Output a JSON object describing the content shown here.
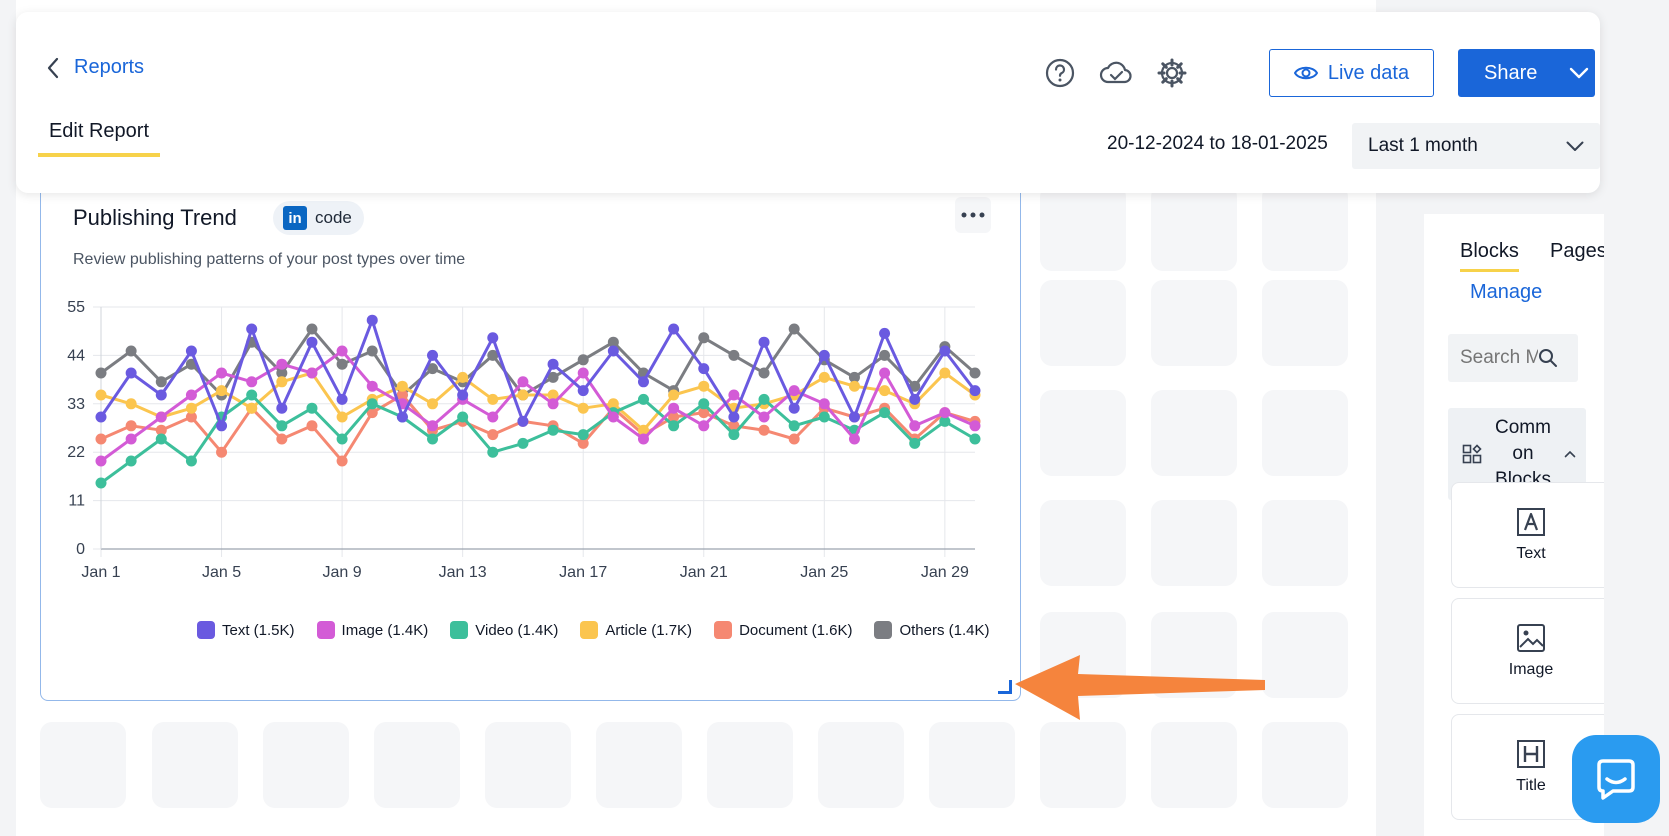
{
  "header": {
    "back_label": "Reports",
    "tab_label": "Edit Report",
    "live_data_label": "Live data",
    "share_label": "Share",
    "date_range": "20-12-2024 to 18-01-2025",
    "period_select": "Last 1 month",
    "icons": [
      "help-icon",
      "cloud-check-icon",
      "gear-icon",
      "eye-icon",
      "chevron-down-icon"
    ]
  },
  "widget": {
    "title": "Publishing Trend",
    "badge_label": "code",
    "badge_icon": "linkedin-icon",
    "subtitle": "Review publishing patterns of your post types over time",
    "menu_icon": "more-dots-icon"
  },
  "chart_data": {
    "type": "line",
    "x_tick_labels": [
      "Jan 1",
      "Jan 5",
      "Jan 9",
      "Jan 13",
      "Jan 17",
      "Jan 21",
      "Jan 25",
      "Jan 29"
    ],
    "x": [
      1,
      2,
      3,
      4,
      5,
      6,
      7,
      8,
      9,
      10,
      11,
      12,
      13,
      14,
      15,
      16,
      17,
      18,
      19,
      20,
      21,
      22,
      23,
      24,
      25,
      26,
      27,
      28,
      29,
      30
    ],
    "ylim": [
      0,
      55
    ],
    "y_ticks": [
      0,
      11,
      22,
      33,
      44,
      55
    ],
    "grid": true,
    "legend_position": "bottom",
    "series": [
      {
        "name": "Text (1.5K)",
        "color": "#6a5ae0",
        "values": [
          30,
          40,
          35,
          45,
          28,
          50,
          32,
          47,
          34,
          52,
          30,
          44,
          35,
          48,
          29,
          42,
          36,
          45,
          38,
          50,
          41,
          30,
          47,
          32,
          44,
          30,
          49,
          34,
          45,
          36
        ]
      },
      {
        "name": "Image (1.4K)",
        "color": "#d35bd6",
        "values": [
          20,
          25,
          30,
          35,
          40,
          38,
          42,
          40,
          45,
          37,
          33,
          28,
          34,
          30,
          38,
          33,
          40,
          30,
          25,
          32,
          28,
          35,
          30,
          36,
          33,
          25,
          40,
          28,
          31,
          28
        ]
      },
      {
        "name": "Video (1.4K)",
        "color": "#3dbf9b",
        "values": [
          15,
          20,
          25,
          20,
          30,
          35,
          28,
          32,
          25,
          33,
          30,
          25,
          30,
          22,
          24,
          27,
          26,
          31,
          34,
          28,
          33,
          26,
          34,
          28,
          30,
          27,
          31,
          24,
          29,
          25
        ]
      },
      {
        "name": "Article (1.7K)",
        "color": "#fbc54f",
        "values": [
          35,
          33,
          30,
          32,
          36,
          32,
          38,
          40,
          30,
          34,
          37,
          33,
          39,
          34,
          35,
          35,
          32,
          33,
          27,
          35,
          37,
          32,
          33,
          35,
          39,
          37,
          36,
          33,
          40,
          35
        ]
      },
      {
        "name": "Document (1.6K)",
        "color": "#f58872",
        "values": [
          25,
          28,
          27,
          30,
          22,
          32,
          25,
          28,
          20,
          31,
          35,
          27,
          29,
          26,
          29,
          28,
          24,
          32,
          26,
          30,
          31,
          28,
          27,
          25,
          32,
          30,
          32,
          25,
          31,
          29
        ]
      },
      {
        "name": "Others (1.4K)",
        "color": "#7b7d82",
        "values": [
          40,
          45,
          38,
          42,
          35,
          47,
          40,
          50,
          42,
          45,
          35,
          41,
          38,
          44,
          35,
          39,
          43,
          47,
          40,
          36,
          48,
          44,
          40,
          50,
          43,
          39,
          44,
          37,
          46,
          40
        ]
      }
    ]
  },
  "right_panel": {
    "tab_blocks": "Blocks",
    "tab_pages": "Pages",
    "manage_label": "Manage",
    "search_placeholder": "Search M",
    "common_blocks_label": "Comm on Blocks",
    "blocks": [
      {
        "label": "Text",
        "icon": "text-block-icon"
      },
      {
        "label": "Image",
        "icon": "image-block-icon"
      },
      {
        "label": "Title",
        "icon": "heading-block-icon"
      }
    ]
  },
  "chat_icon": "chat-bubble-icon"
}
